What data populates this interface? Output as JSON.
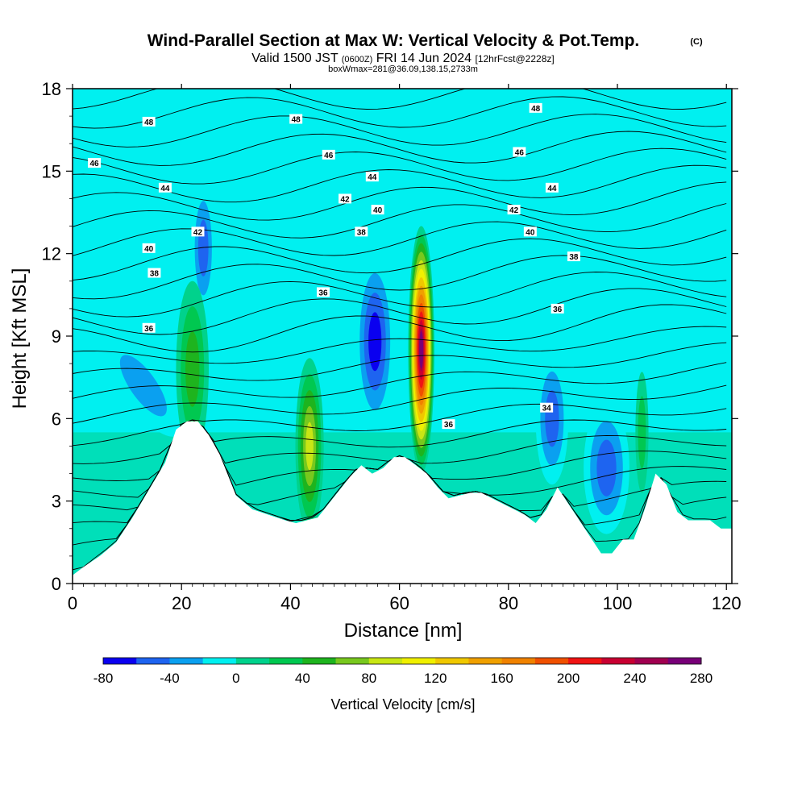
{
  "chart_data": {
    "type": "heatmap",
    "title": "Wind-Parallel Section at Max W: Vertical Velocity & Pot.Temp.",
    "title_mark": "(C)",
    "subtitle_parts": {
      "valid": "Valid 1500 JST",
      "utc": "(0600Z)",
      "date": "FRI 14 Jun 2024",
      "forecast": "[12hrFcst@2228z]"
    },
    "subtitle2": "boxWmax=281@36.09,138.15,2733m",
    "xlabel": "Distance [nm]",
    "ylabel": "Height [Kft MSL]",
    "xlim": [
      0,
      121
    ],
    "ylim": [
      0,
      18
    ],
    "x_ticks": [
      0,
      20,
      40,
      60,
      80,
      100,
      120
    ],
    "y_ticks": [
      0,
      3,
      6,
      9,
      12,
      15,
      18
    ],
    "colorbar": {
      "label": "Vertical Velocity [cm/s]",
      "levels": [
        -80,
        -60,
        -40,
        -20,
        0,
        20,
        40,
        60,
        80,
        100,
        120,
        140,
        160,
        180,
        200,
        220,
        240,
        260,
        280
      ],
      "tick_labels": [
        -80,
        -40,
        0,
        40,
        80,
        120,
        160,
        200,
        240,
        280
      ],
      "colors": [
        "#0a00f0",
        "#1e64f0",
        "#0aa0f0",
        "#00f0f0",
        "#00d28c",
        "#00c850",
        "#1eb41e",
        "#78c81e",
        "#c8e614",
        "#f0f000",
        "#f0c800",
        "#f0a000",
        "#f08200",
        "#f05000",
        "#f01414",
        "#c80032",
        "#a00050",
        "#780078"
      ]
    },
    "terrain_kft": {
      "x": [
        0,
        2,
        5,
        8,
        11,
        14,
        17,
        19,
        21,
        23,
        25,
        27,
        30,
        33,
        36,
        39,
        41,
        43,
        45,
        47,
        49,
        51,
        53,
        55,
        57,
        59,
        61,
        63,
        65,
        67,
        69,
        71,
        73,
        75,
        77,
        79,
        81,
        83,
        85,
        87,
        89,
        91,
        93,
        95,
        97,
        99,
        101,
        103,
        105,
        107,
        109,
        111,
        113,
        115,
        117,
        119,
        121
      ],
      "h": [
        0.3,
        0.6,
        1.0,
        1.5,
        2.4,
        3.4,
        4.4,
        5.6,
        5.9,
        5.9,
        5.4,
        4.7,
        3.2,
        2.7,
        2.5,
        2.3,
        2.2,
        2.3,
        2.4,
        2.9,
        3.4,
        3.9,
        4.3,
        4.0,
        4.2,
        4.6,
        4.6,
        4.3,
        4.0,
        3.5,
        3.1,
        3.2,
        3.3,
        3.3,
        3.1,
        2.9,
        2.7,
        2.5,
        2.2,
        2.7,
        3.5,
        2.9,
        2.3,
        1.7,
        1.1,
        1.1,
        1.6,
        1.6,
        2.7,
        4.0,
        3.6,
        2.6,
        2.3,
        2.3,
        2.3,
        2.0,
        2.0
      ]
    },
    "velocity_features": [
      {
        "x": 13,
        "y": 7.2,
        "w": 4,
        "h": 2.2,
        "tilt": -35,
        "value": -30
      },
      {
        "x": 24,
        "y": 12.2,
        "w": 2.2,
        "h": 2.4,
        "tilt": 0,
        "value": -50
      },
      {
        "x": 22,
        "y": 7.8,
        "w": 3.0,
        "h": 3.2,
        "tilt": 0,
        "value": 55
      },
      {
        "x": 43.5,
        "y": 5.0,
        "w": 2.6,
        "h": 3.2,
        "tilt": 0,
        "value": 95
      },
      {
        "x": 55.5,
        "y": 8.8,
        "w": 3.6,
        "h": 3.2,
        "tilt": 0,
        "value": -75
      },
      {
        "x": 64,
        "y": 8.5,
        "w": 2.4,
        "h": 4.5,
        "tilt": 0,
        "value": 281
      },
      {
        "x": 88,
        "y": 6.0,
        "w": 3.0,
        "h": 2.4,
        "tilt": 0,
        "value": -50
      },
      {
        "x": 98,
        "y": 4.2,
        "w": 4.2,
        "h": 2.4,
        "tilt": 0,
        "value": -60
      },
      {
        "x": 104.5,
        "y": 5.5,
        "w": 1.2,
        "h": 2.2,
        "tilt": 0,
        "value": 40
      }
    ],
    "pot_temp_contours_c": [
      {
        "level": 48,
        "y_left": 16.4,
        "y_right": 17.6,
        "label_x": 14,
        "label_y": 16.8
      },
      {
        "level": 48,
        "y_left": 16.4,
        "y_right": 17.6,
        "label_x": 41,
        "label_y": 16.9
      },
      {
        "level": 48,
        "y_left": 16.4,
        "y_right": 17.6,
        "label_x": 85,
        "label_y": 17.3
      },
      {
        "level": 46,
        "y_left": 14.7,
        "y_right": 16.4,
        "label_x": 4,
        "label_y": 15.3
      },
      {
        "level": 46,
        "y_left": 14.7,
        "y_right": 16.4,
        "label_x": 47,
        "label_y": 15.6
      },
      {
        "level": 46,
        "y_left": 14.7,
        "y_right": 16.4,
        "label_x": 82,
        "label_y": 15.7
      },
      {
        "level": 44,
        "y_left": 13.6,
        "y_right": 15.4,
        "label_x": 17,
        "label_y": 14.4
      },
      {
        "level": 44,
        "y_left": 13.6,
        "y_right": 15.4,
        "label_x": 55,
        "label_y": 14.8
      },
      {
        "level": 44,
        "y_left": 13.6,
        "y_right": 15.4,
        "label_x": 88,
        "label_y": 14.4
      },
      {
        "level": 42,
        "y_left": 12.4,
        "y_right": 14.2,
        "label_x": 23,
        "label_y": 12.8
      },
      {
        "level": 42,
        "y_left": 12.4,
        "y_right": 14.2,
        "label_x": 50,
        "label_y": 14.0
      },
      {
        "level": 42,
        "y_left": 12.4,
        "y_right": 14.2,
        "label_x": 81,
        "label_y": 13.6
      },
      {
        "level": 40,
        "y_left": 11.6,
        "y_right": 13.0,
        "label_x": 14,
        "label_y": 12.2
      },
      {
        "level": 40,
        "y_left": 11.6,
        "y_right": 13.0,
        "label_x": 56,
        "label_y": 13.6
      },
      {
        "level": 40,
        "y_left": 11.6,
        "y_right": 13.0,
        "label_x": 84,
        "label_y": 12.8
      },
      {
        "level": 38,
        "y_left": 10.8,
        "y_right": 12.2,
        "label_x": 15,
        "label_y": 11.3
      },
      {
        "level": 38,
        "y_left": 10.8,
        "y_right": 12.2,
        "label_x": 53,
        "label_y": 12.8
      },
      {
        "level": 38,
        "y_left": 10.8,
        "y_right": 12.2,
        "label_x": 92,
        "label_y": 11.9
      },
      {
        "level": 36,
        "y_left": 8.0,
        "y_right": 10.6,
        "label_x": 14,
        "label_y": 9.3
      },
      {
        "level": 36,
        "y_left": 8.0,
        "y_right": 10.6,
        "label_x": 46,
        "label_y": 10.6
      },
      {
        "level": 36,
        "y_left": 8.0,
        "y_right": 10.6,
        "label_x": 89,
        "label_y": 10.0
      },
      {
        "level": 36,
        "y_left": 8.0,
        "y_right": 10.6,
        "label_x": 69,
        "label_y": 5.8
      },
      {
        "level": 34,
        "y_left": 4.5,
        "y_right": 8.0,
        "label_x": 87,
        "label_y": 6.4
      }
    ]
  }
}
